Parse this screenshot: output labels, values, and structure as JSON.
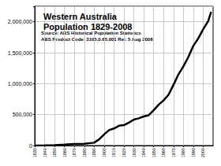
{
  "chart_data": {
    "type": "line",
    "title": "Western Australia\nPopulation 1829-2008",
    "annotations": [
      "Source: ABS Historical Population Statistics",
      "ABS Product Code: 3105.0.65.001 Rel. 5 Aug 2008"
    ],
    "x": [
      1830,
      1840,
      1850,
      1860,
      1870,
      1880,
      1890,
      1895,
      1900,
      1905,
      1910,
      1915,
      1920,
      1925,
      1930,
      1935,
      1940,
      1945,
      1950,
      1955,
      1960,
      1965,
      1970,
      1975,
      1980,
      1985,
      1990,
      1995,
      2000,
      2005,
      2008
    ],
    "values": [
      1200,
      2300,
      5900,
      15000,
      25000,
      29000,
      46000,
      100000,
      180000,
      250000,
      276000,
      320000,
      330000,
      370000,
      420000,
      440000,
      470000,
      490000,
      570000,
      660000,
      730000,
      820000,
      980000,
      1150000,
      1280000,
      1430000,
      1610000,
      1730000,
      1880000,
      2010000,
      2160000
    ],
    "color": "#000000",
    "xlim": [
      1830,
      2010
    ],
    "xticks": [
      1830,
      1840,
      1850,
      1860,
      1870,
      1880,
      1890,
      1900,
      1910,
      1920,
      1930,
      1940,
      1950,
      1960,
      1970,
      1980,
      1990,
      2000
    ],
    "ylim": [
      0,
      2250000
    ],
    "yticks": [
      0,
      {
        "value": 500000,
        "label": "500,000"
      },
      {
        "value": 1000000,
        "label": "1,000,000"
      },
      {
        "value": 1500000,
        "label": "1,500,000"
      },
      {
        "value": 2000000,
        "label": "2,000,000"
      }
    ],
    "grid": true
  }
}
